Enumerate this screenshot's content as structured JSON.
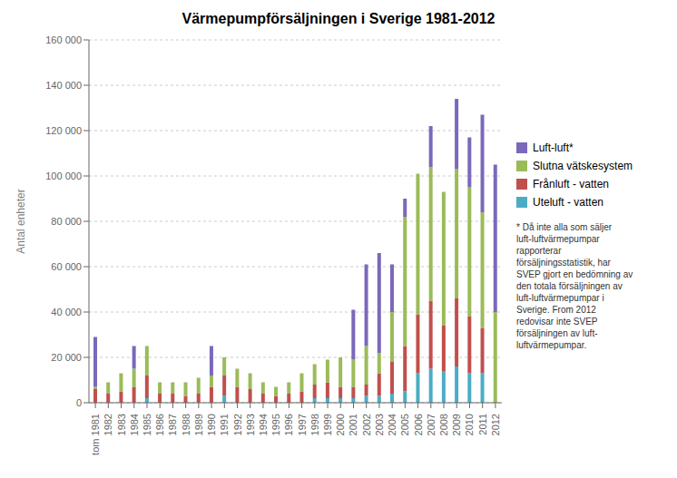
{
  "chart_data": {
    "type": "bar",
    "title": "Värmepumpförsäljningen i Sverige 1981-2012",
    "ylabel": "Antal enheter",
    "stacked": true,
    "grid": true,
    "legend": "right",
    "categories": [
      "tom 1981",
      "1982",
      "1983",
      "1984",
      "1985",
      "1986",
      "1987",
      "1988",
      "1989",
      "1990",
      "1991",
      "1992",
      "1993",
      "1994",
      "1995",
      "1996",
      "1997",
      "1998",
      "1999",
      "2000",
      "2001",
      "2002",
      "2003",
      "2004",
      "2005",
      "2006",
      "2007",
      "2008",
      "2009",
      "2010",
      "2011",
      "2012"
    ],
    "series": [
      {
        "name": "Luft-luft*",
        "color": "#7b68bb",
        "values": [
          22000,
          0,
          0,
          10000,
          0,
          0,
          0,
          0,
          0,
          13000,
          0,
          0,
          0,
          0,
          0,
          0,
          0,
          0,
          0,
          0,
          22000,
          36000,
          44000,
          21000,
          8000,
          0,
          18000,
          0,
          31000,
          22000,
          43000,
          65000
        ]
      },
      {
        "name": "Slutna vätskesystem",
        "color": "#9bbb59",
        "values": [
          1000,
          5000,
          8000,
          8000,
          13000,
          5000,
          5000,
          6000,
          7000,
          5000,
          8000,
          8000,
          7000,
          5000,
          4000,
          5000,
          8000,
          9000,
          10000,
          13000,
          12000,
          17000,
          9000,
          22000,
          57000,
          62000,
          59000,
          59000,
          57000,
          57000,
          51000,
          40000
        ]
      },
      {
        "name": "Frånluft - vatten",
        "color": "#c0504d",
        "values": [
          6000,
          4000,
          5000,
          7000,
          10000,
          4000,
          4000,
          3000,
          4000,
          7000,
          9000,
          7000,
          6000,
          4000,
          3000,
          4000,
          5000,
          6000,
          7000,
          5000,
          5000,
          5000,
          10000,
          14000,
          20000,
          26000,
          30000,
          20000,
          30000,
          25000,
          20000,
          0
        ]
      },
      {
        "name": "Uteluft - vatten",
        "color": "#4bacc6",
        "values": [
          0,
          0,
          0,
          0,
          2000,
          0,
          0,
          0,
          0,
          0,
          3000,
          0,
          0,
          0,
          0,
          0,
          0,
          2000,
          2000,
          2000,
          2000,
          3000,
          3000,
          4000,
          5000,
          13000,
          15000,
          14000,
          16000,
          13000,
          13000,
          0
        ]
      }
    ],
    "ylim": [
      0,
      160000
    ],
    "yticks": [
      0,
      {
        "value": 20000,
        "label": "20 000"
      },
      {
        "value": 40000,
        "label": "40 000"
      },
      {
        "value": 60000,
        "label": "60 000"
      },
      {
        "value": 80000,
        "label": "80 000"
      },
      {
        "value": 100000,
        "label": "100 000"
      },
      {
        "value": 120000,
        "label": "120 000"
      },
      {
        "value": 140000,
        "label": "140 000"
      },
      {
        "value": 160000,
        "label": "160 000"
      }
    ],
    "annotation": "* Då inte alla som säljer\nluft-luftvärmepumpar\nrapporterar\nförsäljningsstatistik, har\nSVEP gjort en bedömning av\nden totala försäljningen av\nluft-luftvärmepumpar i\nSverige. From 2012\nredovisar inte SVEP\nförsäljningen av luft-\nluftvärmepumpar."
  }
}
